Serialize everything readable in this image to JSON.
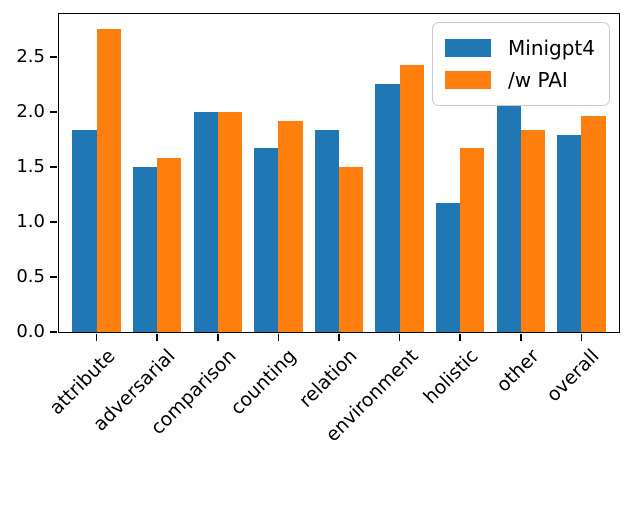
{
  "chart_data": {
    "type": "bar",
    "title": "",
    "xlabel": "",
    "ylabel": "",
    "categories": [
      "attribute",
      "adversarial",
      "comparison",
      "counting",
      "relation",
      "environment",
      "holistic",
      "other",
      "overall"
    ],
    "series": [
      {
        "name": "Minigpt4",
        "color": "#1f77b4",
        "values": [
          1.83,
          1.5,
          2.0,
          1.67,
          1.83,
          2.25,
          1.17,
          2.08,
          1.79
        ]
      },
      {
        "name": "/w PAI",
        "color": "#ff7f0e",
        "values": [
          2.75,
          1.58,
          2.0,
          1.92,
          1.5,
          2.42,
          1.67,
          1.83,
          1.96
        ]
      }
    ],
    "ylim": [
      0,
      2.8875
    ],
    "yticks": [
      0.0,
      0.5,
      1.0,
      1.5,
      2.0,
      2.5
    ],
    "ytick_labels": [
      "0.0",
      "0.5",
      "1.0",
      "1.5",
      "2.0",
      "2.5"
    ],
    "bar_width": 0.4,
    "x_label_rotation_deg": 45,
    "grid": false,
    "legend_position": "upper right"
  },
  "legend": {
    "items": [
      {
        "label": "Minigpt4",
        "color": "#1f77b4"
      },
      {
        "label": "/w PAI",
        "color": "#ff7f0e"
      }
    ]
  },
  "colors": {
    "spine": "#000000",
    "background": "#ffffff",
    "legend_border": "#cccccc"
  }
}
